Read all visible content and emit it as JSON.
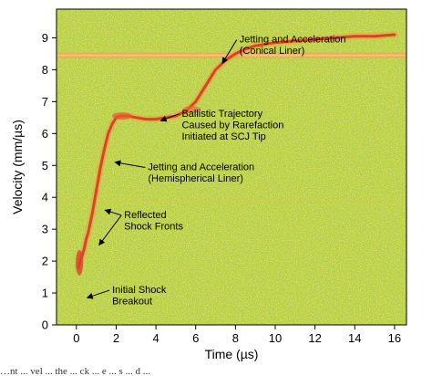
{
  "chart_data": {
    "type": "line",
    "title": "",
    "xlabel": "Time (µs)",
    "ylabel": "Velocity (mm/µs)",
    "xlim": [
      -1,
      16.6
    ],
    "ylim": [
      0,
      9.9
    ],
    "x_ticks": [
      0,
      2,
      4,
      6,
      8,
      10,
      12,
      14,
      16
    ],
    "y_ticks": [
      0,
      1,
      2,
      3,
      4,
      5,
      6,
      7,
      8,
      9
    ],
    "grid": false,
    "legend": "none",
    "background": "velocity spectrogram (green/yellow noise)",
    "colors": {
      "background": "#b9cf3c",
      "trace": "#d9432a",
      "band": "#f2a55a"
    },
    "reference_band_y": 8.45,
    "series": [
      {
        "x": [
          0.1,
          0.2,
          0.3,
          0.4,
          0.5,
          0.6,
          0.7,
          0.8,
          1.0,
          1.2,
          1.4,
          1.6,
          1.8,
          2.0,
          2.2,
          2.6,
          3.0,
          3.5,
          4.0,
          4.5,
          5.0,
          5.5,
          6.0,
          6.5,
          7.0,
          7.5,
          8.0,
          8.5,
          9.0,
          10.0,
          11.0,
          12.0,
          13.0,
          14.0,
          15.0,
          16.0
        ],
        "y": [
          1.8,
          2.0,
          2.2,
          2.4,
          2.7,
          2.9,
          3.2,
          3.5,
          4.2,
          4.9,
          5.5,
          6.0,
          6.3,
          6.5,
          6.55,
          6.55,
          6.5,
          6.45,
          6.45,
          6.5,
          6.55,
          6.7,
          7.0,
          7.5,
          8.0,
          8.3,
          8.5,
          8.65,
          8.75,
          8.85,
          8.9,
          8.95,
          9.0,
          9.05,
          9.05,
          9.1
        ]
      }
    ],
    "annotations": [
      {
        "lines": [
          "Jetting and Acceleration",
          "(Conical Liner)"
        ],
        "point": [
          7.2,
          8.2
        ],
        "text_at": [
          8.2,
          8.75
        ]
      },
      {
        "lines": [
          "Ballistic Trajectory",
          "Caused by Rarefaction",
          "Initiated at SCJ Tip"
        ],
        "point": [
          4.1,
          6.4
        ],
        "text_at": [
          5.3,
          6.25
        ]
      },
      {
        "lines": [
          "Jetting and Acceleration",
          "(Hemispherical Liner)"
        ],
        "point": [
          1.8,
          5.1
        ],
        "text_at": [
          3.6,
          4.75
        ]
      },
      {
        "lines": [
          "Reflected",
          "Shock Fronts"
        ],
        "point": [
          1.3,
          3.6
        ],
        "text_at": [
          2.4,
          3.25
        ]
      },
      {
        "lines": [
          "Reflected",
          "Shock Fronts"
        ],
        "point": [
          1.0,
          2.5
        ],
        "text_at": [
          2.4,
          3.25
        ]
      },
      {
        "lines": [
          "Initial Shock",
          "Breakout"
        ],
        "point": [
          0.4,
          0.85
        ],
        "text_at": [
          1.8,
          0.9
        ]
      }
    ]
  },
  "caption_fragment": "…nt ... vel ... the ... ck ... e ... s ... d ..."
}
